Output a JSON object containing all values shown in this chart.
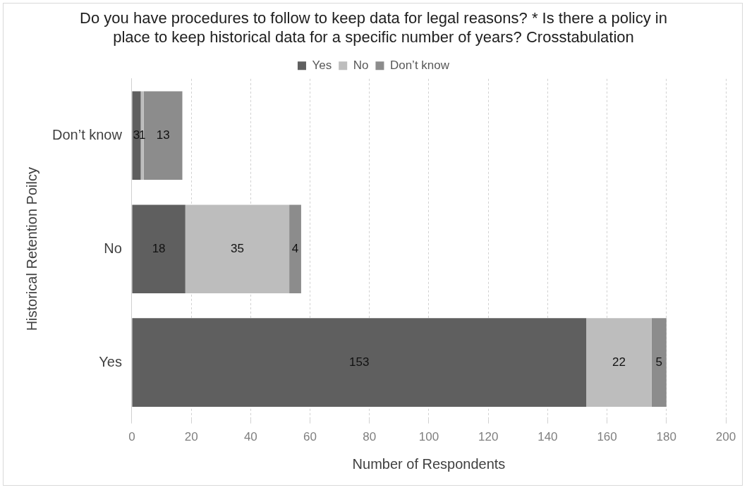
{
  "chart_data": {
    "type": "bar",
    "orientation": "horizontal",
    "stacked": true,
    "title": "Do you have procedures to follow to keep data for legal reasons? * Is there a policy in place to keep historical data for a specific number of years? Crosstabulation",
    "xlabel": "Number of Respondents",
    "ylabel": "Historical Retention Poilcy",
    "categories": [
      "Don’t know",
      "No",
      "Yes"
    ],
    "series": [
      {
        "name": "Yes",
        "color": "#5f5f5f",
        "values": [
          3,
          18,
          153
        ]
      },
      {
        "name": "No",
        "color": "#bdbdbd",
        "values": [
          1,
          35,
          22
        ]
      },
      {
        "name": "Don’t know",
        "color": "#8c8c8c",
        "values": [
          13,
          4,
          5
        ]
      }
    ],
    "xlim": [
      0,
      200
    ],
    "xticks": [
      0,
      20,
      40,
      60,
      80,
      100,
      120,
      140,
      160,
      180,
      200
    ],
    "grid": "x",
    "legend": "top",
    "data_labels": true
  }
}
